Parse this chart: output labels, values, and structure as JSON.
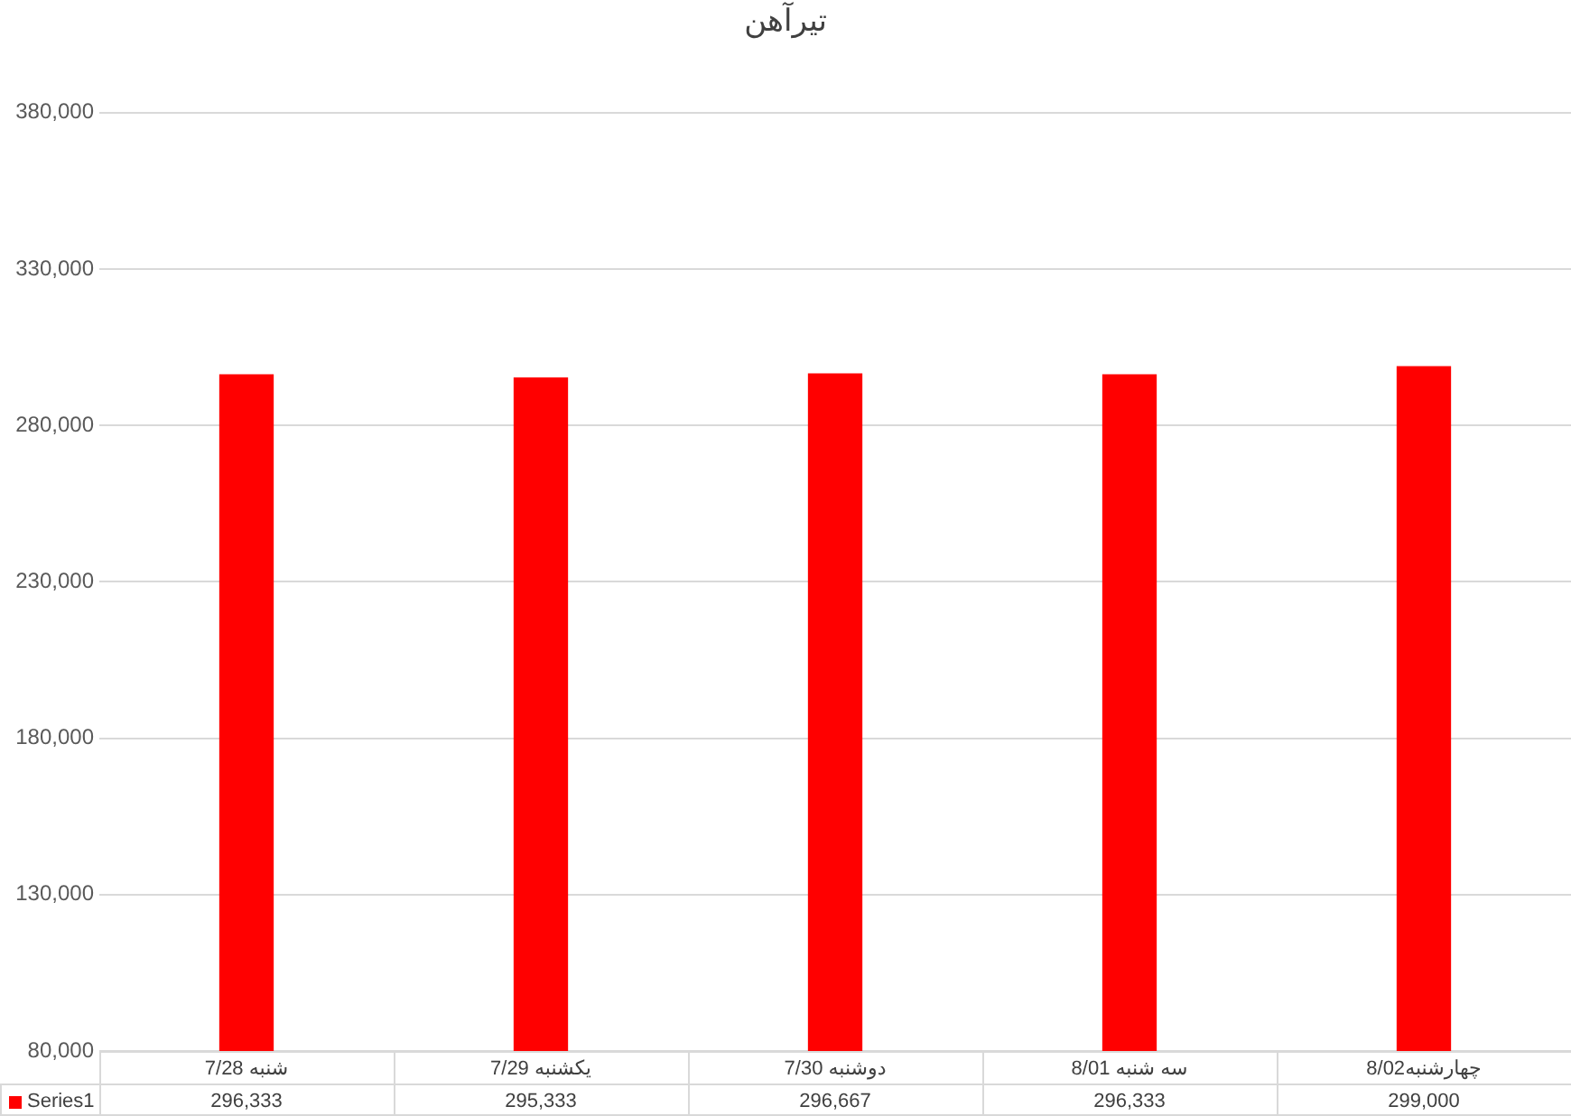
{
  "chart_data": {
    "type": "bar",
    "title": "تیرآهن",
    "categories": [
      "شنبه 7/28",
      "یکشنبه 7/29",
      "دوشنبه 7/30",
      "سه شنبه 8/01",
      "چهارشنبه8/02"
    ],
    "series": [
      {
        "name": "Series1",
        "color": "#ff0000",
        "values": [
          296333,
          295333,
          296667,
          296333,
          299000
        ],
        "value_labels": [
          "296,333",
          "295,333",
          "296,667",
          "296,333",
          "299,000"
        ]
      }
    ],
    "ylim": [
      80000,
      380000
    ],
    "yticks": [
      {
        "value": 80000,
        "label": "80,000"
      },
      {
        "value": 130000,
        "label": "130,000"
      },
      {
        "value": 180000,
        "label": "180,000"
      },
      {
        "value": 230000,
        "label": "230,000"
      },
      {
        "value": 280000,
        "label": "280,000"
      },
      {
        "value": 330000,
        "label": "330,000"
      },
      {
        "value": 380000,
        "label": "380,000"
      }
    ],
    "grid": "y",
    "legend": "bottom"
  }
}
